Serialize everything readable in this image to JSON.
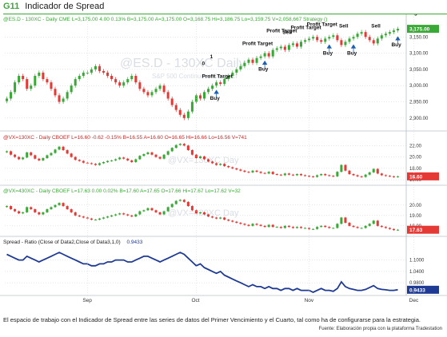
{
  "header": {
    "tag": "G11",
    "title": "Indicador de Spread"
  },
  "panes": [
    {
      "id": "es",
      "label_main": "@ES.D - 130XC - Daily  CME  L=3,175.00  4.00  0.13%  B=3,175.00  A=3,175.00  O=3,168.75  Hi=3,186.75  Lo=3,159.75  V=2,058,667  Strategy ()",
      "watermark": "@ES.D - 130XC Daily",
      "watermark_sub": "S&P 500 Continuous Contract",
      "last_badge": "3,175.00",
      "badge_color": "#39a935",
      "y_ticks": [
        "3,150.00",
        "3,100.00",
        "3,050.00",
        "3,000.00",
        "2,950.00",
        "2,900.00"
      ],
      "y_range": [
        2870,
        3190
      ],
      "strategy_labels": [
        {
          "text": "Profit Target",
          "day": 50
        },
        {
          "text": "0",
          "day": 50
        },
        {
          "text": "Buy",
          "day": 52
        },
        {
          "text": "1",
          "day": 52
        },
        {
          "text": "Profit Target",
          "day": 60
        },
        {
          "text": "Profit Target",
          "day": 66
        },
        {
          "text": "Sell",
          "day": 70
        },
        {
          "text": "Buy",
          "day": 64
        },
        {
          "text": "Profit Target",
          "day": 72
        },
        {
          "text": "Profit Target",
          "day": 76
        },
        {
          "text": "Sell",
          "day": 84
        },
        {
          "text": "Buy",
          "day": 80
        },
        {
          "text": "Sell",
          "day": 92
        },
        {
          "text": "Buy",
          "day": 86
        },
        {
          "text": "Sell",
          "day": 96
        },
        {
          "text": "Buy",
          "day": 101
        },
        {
          "text": "Profit Target",
          "day": 100
        }
      ]
    },
    {
      "id": "vx1",
      "label_main": "@VX=130XC - Daily  CBOEF  L=16.60  -0.62  -0.15%  B=16.55  A=16.60  O=16.65  Hi=16.66  Lo=16.56  V=741",
      "watermark": "@VX=130XC Day",
      "last_badge": "16.60",
      "badge_color": "#e53935",
      "y_ticks": [
        "22.00",
        "20.00",
        "18.00",
        "16.00"
      ],
      "y_range": [
        15.6,
        22.6
      ]
    },
    {
      "id": "vx4",
      "label_main": "@VX=430XC - Daily  CBOEF  L=17.63  0.00  0.02%  B=17.60  A=17.65  O=17.66  Hi=17.67  Lo=17.62  V=32",
      "watermark": "@VX=430XC Day",
      "last_badge": "17.63",
      "badge_color": "#e53935",
      "y_ticks": [
        "20.00",
        "19.00",
        "18.00"
      ],
      "y_range": [
        17.3,
        20.9
      ]
    },
    {
      "id": "spread",
      "label_main": "Spread - Ratio (Close of Data2,Close of Data3,1,0)",
      "label_value": "0.9433",
      "last_badge": "0.9433",
      "badge_color": "#1f3a93",
      "y_ticks": [
        "1.1000",
        "1.0400",
        "0.9800"
      ],
      "y_range": [
        0.93,
        1.17
      ]
    }
  ],
  "x_axis": {
    "labels": [
      "Sep",
      "Oct",
      "Nov",
      "Dec"
    ],
    "label_days": [
      20,
      47,
      75,
      101
    ]
  },
  "caption": "El espacio de trabajo con el Indicador de Spread entre las series de datos del Primer Vencimiento y el Cuarto, tal como ha de configurarse para la estrategia.",
  "source": "Fuente: Elaboración propia con la plataforma Tradestation",
  "colors": {
    "up": "#39a935",
    "down": "#e53935",
    "spread_line": "#1f3a93",
    "signal": "#1a5fb4",
    "grid": "#c8d2dc"
  },
  "chart_data": [
    {
      "type": "candlestick",
      "title": "@ES.D - 130XC - Daily",
      "x_labels": [
        "Sep",
        "Oct",
        "Nov",
        "Dec"
      ],
      "ylim": [
        2870,
        3190
      ],
      "close_approx": [
        2960,
        2980,
        3010,
        3030,
        3020,
        2990,
        3000,
        3030,
        3040,
        3020,
        3010,
        2990,
        2970,
        2950,
        2960,
        2980,
        3000,
        3020,
        3030,
        3040,
        3040,
        3050,
        3060,
        3045,
        3040,
        3030,
        3020,
        3010,
        3000,
        3010,
        3020,
        3030,
        3010,
        2990,
        2980,
        2970,
        2980,
        2990,
        3000,
        2980,
        2960,
        2940,
        2925,
        2910,
        2900,
        2920,
        2950,
        2970,
        2960,
        2980,
        2990,
        3000,
        3010,
        3005,
        3020,
        3030,
        3040,
        3050,
        3060,
        3070,
        3080,
        3070,
        3085,
        3090,
        3100,
        3090,
        3110,
        3115,
        3120,
        3110,
        3125,
        3130,
        3120,
        3135,
        3140,
        3145,
        3150,
        3140,
        3135,
        3145,
        3150,
        3155,
        3140,
        3125,
        3135,
        3145,
        3150,
        3160,
        3165,
        3150,
        3140,
        3130,
        3145,
        3155,
        3160,
        3165,
        3170,
        3175
      ]
    },
    {
      "type": "candlestick",
      "title": "@VX=130XC - Daily",
      "ylim": [
        15.6,
        22.6
      ],
      "close_approx": [
        21.0,
        20.4,
        20.0,
        19.6,
        19.9,
        20.8,
        20.3,
        19.7,
        19.4,
        19.8,
        20.3,
        20.7,
        21.3,
        21.8,
        21.2,
        20.6,
        20.0,
        19.5,
        19.3,
        19.0,
        18.9,
        18.8,
        18.6,
        18.9,
        19.1,
        19.3,
        19.4,
        19.6,
        19.9,
        19.7,
        19.4,
        19.1,
        19.6,
        20.2,
        20.5,
        20.8,
        20.4,
        20.0,
        19.7,
        20.4,
        21.0,
        21.6,
        22.1,
        22.3,
        22.0,
        21.2,
        20.4,
        19.8,
        20.1,
        19.6,
        19.2,
        18.9,
        18.6,
        18.8,
        18.4,
        18.2,
        18.0,
        17.8,
        17.6,
        17.4,
        17.3,
        17.6,
        17.4,
        17.2,
        17.1,
        17.4,
        17.0,
        16.9,
        16.8,
        17.1,
        16.9,
        16.8,
        17.0,
        16.8,
        16.7,
        16.6,
        16.5,
        16.8,
        17.0,
        16.8,
        16.7,
        16.6,
        17.4,
        18.6,
        17.6,
        17.0,
        16.8,
        16.6,
        16.5,
        16.9,
        17.3,
        17.9,
        17.1,
        16.8,
        16.7,
        16.6,
        16.5,
        16.6
      ]
    },
    {
      "type": "candlestick",
      "title": "@VX=430XC - Daily",
      "ylim": [
        17.3,
        20.9
      ],
      "close_approx": [
        19.9,
        19.6,
        19.4,
        19.2,
        19.3,
        19.8,
        19.6,
        19.3,
        19.1,
        19.3,
        19.6,
        19.8,
        20.0,
        20.2,
        19.9,
        19.6,
        19.3,
        19.0,
        18.9,
        18.8,
        18.7,
        18.6,
        18.6,
        18.7,
        18.8,
        18.9,
        19.0,
        19.1,
        19.2,
        19.1,
        19.0,
        18.9,
        19.1,
        19.4,
        19.5,
        19.7,
        19.5,
        19.3,
        19.1,
        19.4,
        19.8,
        20.1,
        20.4,
        20.5,
        20.3,
        19.9,
        19.5,
        19.2,
        19.3,
        19.1,
        18.9,
        18.8,
        18.7,
        18.8,
        18.6,
        18.5,
        18.4,
        18.3,
        18.2,
        18.1,
        18.0,
        18.2,
        18.1,
        18.0,
        17.9,
        18.1,
        17.9,
        17.9,
        17.8,
        18.0,
        17.9,
        17.8,
        17.9,
        17.8,
        17.8,
        17.7,
        17.7,
        17.9,
        18.0,
        17.9,
        17.8,
        17.8,
        18.2,
        18.8,
        18.3,
        18.0,
        17.9,
        17.8,
        17.8,
        18.0,
        18.2,
        18.5,
        18.0,
        17.9,
        17.8,
        17.7,
        17.6,
        17.63
      ]
    },
    {
      "type": "line",
      "title": "Spread - Ratio (Close of Data2,Close of Data3,1,0)",
      "ylim": [
        0.93,
        1.17
      ],
      "last": 0.9433,
      "values": [
        1.13,
        1.12,
        1.11,
        1.1,
        1.1,
        1.12,
        1.11,
        1.1,
        1.09,
        1.1,
        1.11,
        1.12,
        1.13,
        1.14,
        1.13,
        1.12,
        1.11,
        1.1,
        1.09,
        1.08,
        1.08,
        1.07,
        1.07,
        1.08,
        1.08,
        1.09,
        1.09,
        1.1,
        1.1,
        1.1,
        1.09,
        1.09,
        1.1,
        1.11,
        1.12,
        1.12,
        1.11,
        1.1,
        1.09,
        1.1,
        1.11,
        1.12,
        1.13,
        1.14,
        1.13,
        1.11,
        1.09,
        1.07,
        1.08,
        1.06,
        1.05,
        1.04,
        1.03,
        1.04,
        1.02,
        1.01,
        1.0,
        0.99,
        0.98,
        0.97,
        0.96,
        0.97,
        0.96,
        0.96,
        0.95,
        0.96,
        0.95,
        0.95,
        0.94,
        0.95,
        0.95,
        0.94,
        0.95,
        0.94,
        0.94,
        0.94,
        0.93,
        0.94,
        0.95,
        0.94,
        0.94,
        0.935,
        0.95,
        0.985,
        0.96,
        0.95,
        0.945,
        0.94,
        0.94,
        0.945,
        0.955,
        0.965,
        0.95,
        0.945,
        0.943,
        0.94,
        0.94,
        0.9433
      ]
    }
  ]
}
